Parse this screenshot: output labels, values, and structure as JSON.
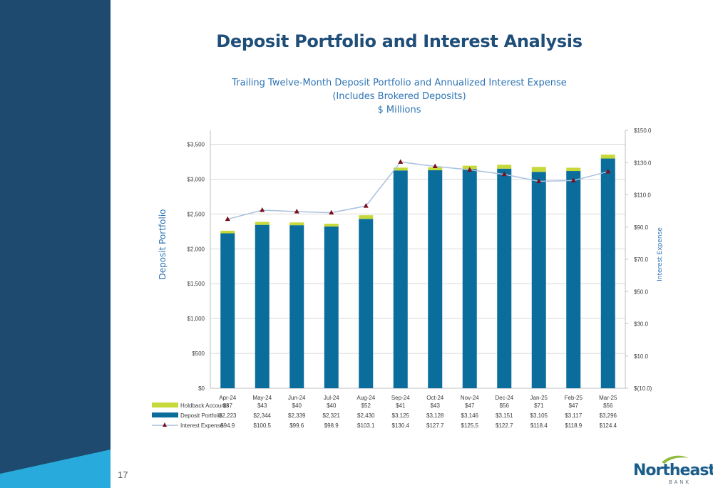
{
  "page": {
    "title": "Deposit Portfolio and Interest Analysis",
    "page_number": "17",
    "logo_name": "Northeast",
    "logo_sub": "BANK"
  },
  "colors": {
    "navy_panel": "#1d4a6e",
    "cyan_accent": "#29aadc",
    "deposit_bar": "#0a6d9c",
    "holdback_bar": "#c7d93a",
    "interest_line": "#a9c0de",
    "marker": "#7a0f1a",
    "title_blue": "#1f4e79",
    "chart_title_blue": "#2e74b5"
  },
  "chart_data": {
    "type": "bar",
    "title_lines": [
      "Trailing Twelve-Month Deposit Portfolio and Annualized Interest Expense",
      "(Includes Brokered Deposits)",
      "$ Millions"
    ],
    "categories": [
      "Apr-24",
      "May-24",
      "Jun-24",
      "Jul-24",
      "Aug-24",
      "Sep-24",
      "Oct-24",
      "Nov-24",
      "Dec-24",
      "Jan-25",
      "Feb-25",
      "Mar-25"
    ],
    "series": [
      {
        "name": "Holdback Accounts",
        "kind": "stacked-bar",
        "values": [
          37,
          43,
          40,
          40,
          52,
          41,
          43,
          47,
          56,
          71,
          47,
          56
        ],
        "labels": [
          "$37",
          "$43",
          "$40",
          "$40",
          "$52",
          "$41",
          "$43",
          "$47",
          "$56",
          "$71",
          "$47",
          "$56"
        ]
      },
      {
        "name": "Deposit Portfolio",
        "kind": "stacked-bar",
        "values": [
          2223,
          2344,
          2339,
          2321,
          2430,
          3125,
          3128,
          3146,
          3151,
          3105,
          3117,
          3296
        ],
        "labels": [
          "$2,223",
          "$2,344",
          "$2,339",
          "$2,321",
          "$2,430",
          "$3,125",
          "$3,128",
          "$3,146",
          "$3,151",
          "$3,105",
          "$3,117",
          "$3,296"
        ]
      },
      {
        "name": "Interest Expense",
        "kind": "line",
        "axis": "right",
        "values": [
          94.9,
          100.5,
          99.6,
          98.9,
          103.1,
          130.4,
          127.7,
          125.5,
          122.7,
          118.4,
          118.9,
          124.4
        ],
        "labels": [
          "$94.9",
          "$100.5",
          "$99.6",
          "$98.9",
          "$103.1",
          "$130.4",
          "$127.7",
          "$125.5",
          "$122.7",
          "$118.4",
          "$118.9",
          "$124.4"
        ]
      }
    ],
    "y_left": {
      "label": "Deposit Portfolio",
      "ylim": [
        0,
        3700
      ],
      "ticks": [
        0,
        500,
        1000,
        1500,
        2000,
        2500,
        3000,
        3500
      ],
      "tick_labels": [
        "$0",
        "$500",
        "$1,000",
        "$1,500",
        "$2,000",
        "$2,500",
        "$3,000",
        "$3,500"
      ]
    },
    "y_right": {
      "label": "Interest Expense",
      "ylim": [
        -10,
        150
      ],
      "ticks": [
        -10,
        10,
        30,
        50,
        70,
        90,
        110,
        130,
        150
      ],
      "tick_labels": [
        "$(10.0)",
        "$10.0",
        "$30.0",
        "$50.0",
        "$70.0",
        "$90.0",
        "$110.0",
        "$130.0",
        "$150.0"
      ]
    },
    "grid": "horizontal",
    "legend": "data-table-below"
  }
}
